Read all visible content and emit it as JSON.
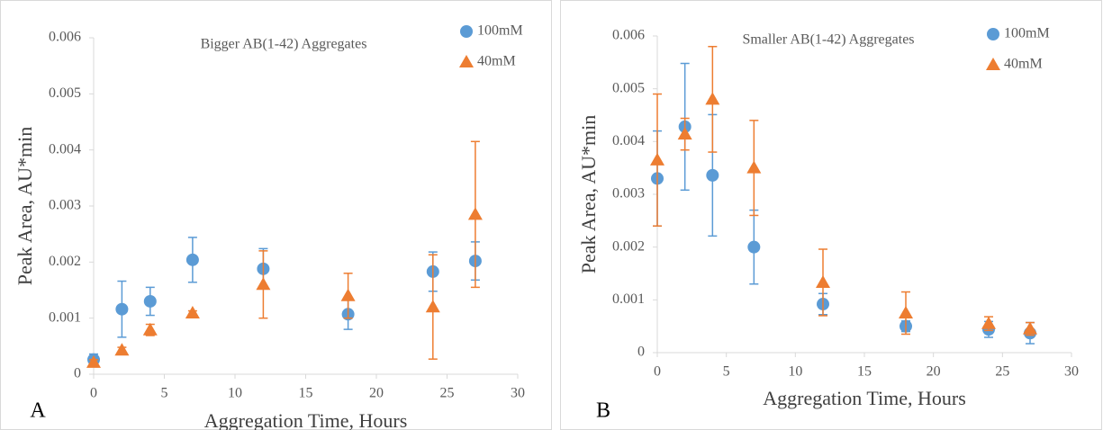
{
  "chart_data": [
    {
      "type": "scatter",
      "title": "Bigger AB(1-42) Aggregates",
      "xlabel": "Aggregation Time, Hours",
      "ylabel": "Peak Area, AU*min",
      "panel_label": "A",
      "xlim": [
        0,
        30
      ],
      "xticks": [
        0,
        5,
        10,
        15,
        20,
        25,
        30
      ],
      "ylim": [
        0,
        0.006
      ],
      "yticks": [
        0,
        0.001,
        0.002,
        0.003,
        0.004,
        0.005,
        0.006
      ],
      "series": [
        {
          "name": "100mM",
          "color": "#5b9bd5",
          "marker": "circle",
          "x": [
            0,
            2,
            4,
            7,
            12,
            18,
            24,
            27
          ],
          "values": [
            0.00026,
            0.00116,
            0.0013,
            0.00204,
            0.00188,
            0.00107,
            0.00183,
            0.00202
          ],
          "errors": [
            0.0001,
            0.0005,
            0.00025,
            0.0004,
            0.00036,
            0.00027,
            0.00035,
            0.00034
          ]
        },
        {
          "name": "40mM",
          "color": "#ed7d31",
          "marker": "triangle",
          "x": [
            0,
            2,
            4,
            7,
            12,
            18,
            24,
            27
          ],
          "values": [
            0.00021,
            0.00043,
            0.00079,
            0.00109,
            0.0016,
            0.0014,
            0.0012,
            0.00285
          ],
          "errors": [
            5e-05,
            5e-05,
            0.0001,
            4e-05,
            0.0006,
            0.0004,
            0.00093,
            0.0013
          ]
        }
      ]
    },
    {
      "type": "scatter",
      "title": "Smaller AB(1-42) Aggregates",
      "xlabel": "Aggregation Time, Hours",
      "ylabel": "Peak Area, AU*min",
      "panel_label": "B",
      "xlim": [
        0,
        30
      ],
      "xticks": [
        0,
        5,
        10,
        15,
        20,
        25,
        30
      ],
      "ylim": [
        0,
        0.006
      ],
      "yticks": [
        0,
        0.001,
        0.002,
        0.003,
        0.004,
        0.005,
        0.006
      ],
      "series": [
        {
          "name": "100mM",
          "color": "#5b9bd5",
          "marker": "circle",
          "x": [
            0,
            2,
            4,
            7,
            12,
            18,
            24,
            27
          ],
          "values": [
            0.0033,
            0.00428,
            0.00336,
            0.002,
            0.00092,
            0.0005,
            0.00044,
            0.00037
          ],
          "errors": [
            0.0009,
            0.0012,
            0.00115,
            0.0007,
            0.0002,
            0.0001,
            0.00015,
            0.0002
          ]
        },
        {
          "name": "40mM",
          "color": "#ed7d31",
          "marker": "triangle",
          "x": [
            0,
            2,
            4,
            7,
            12,
            18,
            24,
            27
          ],
          "values": [
            0.00365,
            0.00414,
            0.0048,
            0.0035,
            0.00133,
            0.00075,
            0.00055,
            0.00045
          ],
          "errors": [
            0.00125,
            0.0003,
            0.001,
            0.0009,
            0.00063,
            0.0004,
            0.00013,
            0.00012
          ]
        }
      ]
    }
  ]
}
